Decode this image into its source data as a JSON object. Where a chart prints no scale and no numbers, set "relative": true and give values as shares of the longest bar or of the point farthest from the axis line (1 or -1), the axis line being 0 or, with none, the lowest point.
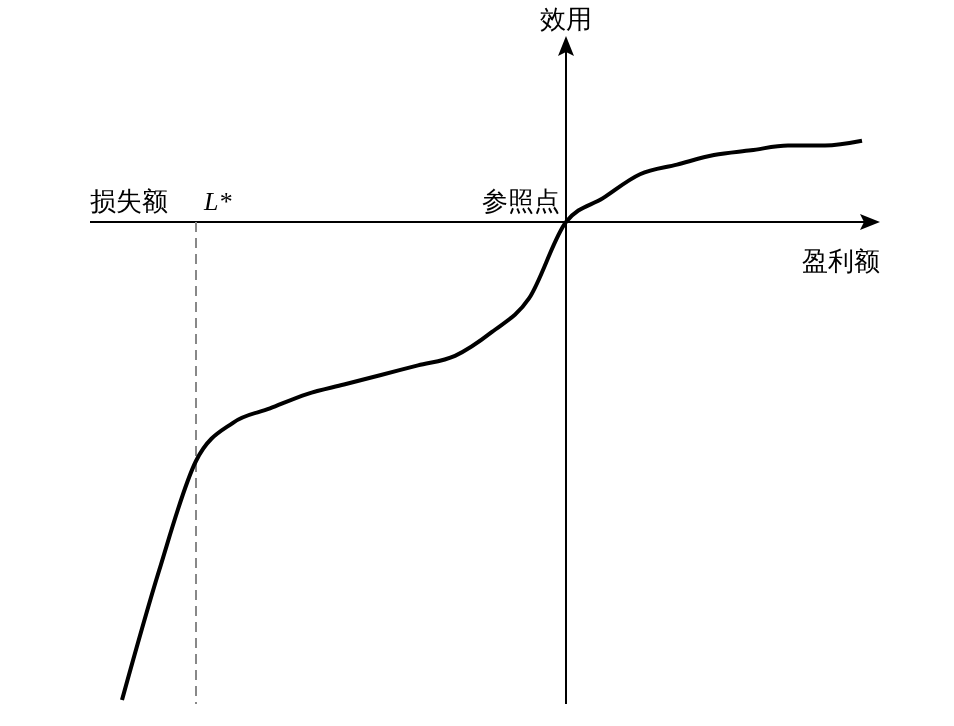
{
  "chart_data": {
    "type": "line",
    "relative": true,
    "xlabel": "盈利额",
    "ylabel": "效用",
    "categories": [
      null,
      null,
      null,
      null,
      null,
      null,
      null,
      null,
      null,
      null,
      null,
      null,
      null,
      null,
      null,
      null,
      null,
      null,
      null,
      null,
      null
    ],
    "series": [
      {
        "color": "#000000",
        "values": [
          -1,
          -0.73,
          -0.5,
          -0.42,
          -0.39,
          -0.36,
          -0.34,
          -0.32,
          -0.3,
          -0.28,
          -0.23,
          -0.16,
          0,
          0.05,
          0.1,
          0.12,
          0.14,
          0.15,
          0.16,
          0.16,
          0.17
        ]
      }
    ],
    "annotations": [
      "损失额",
      "参照点",
      "L*"
    ],
    "marker": "none",
    "line_style": "solid"
  }
}
